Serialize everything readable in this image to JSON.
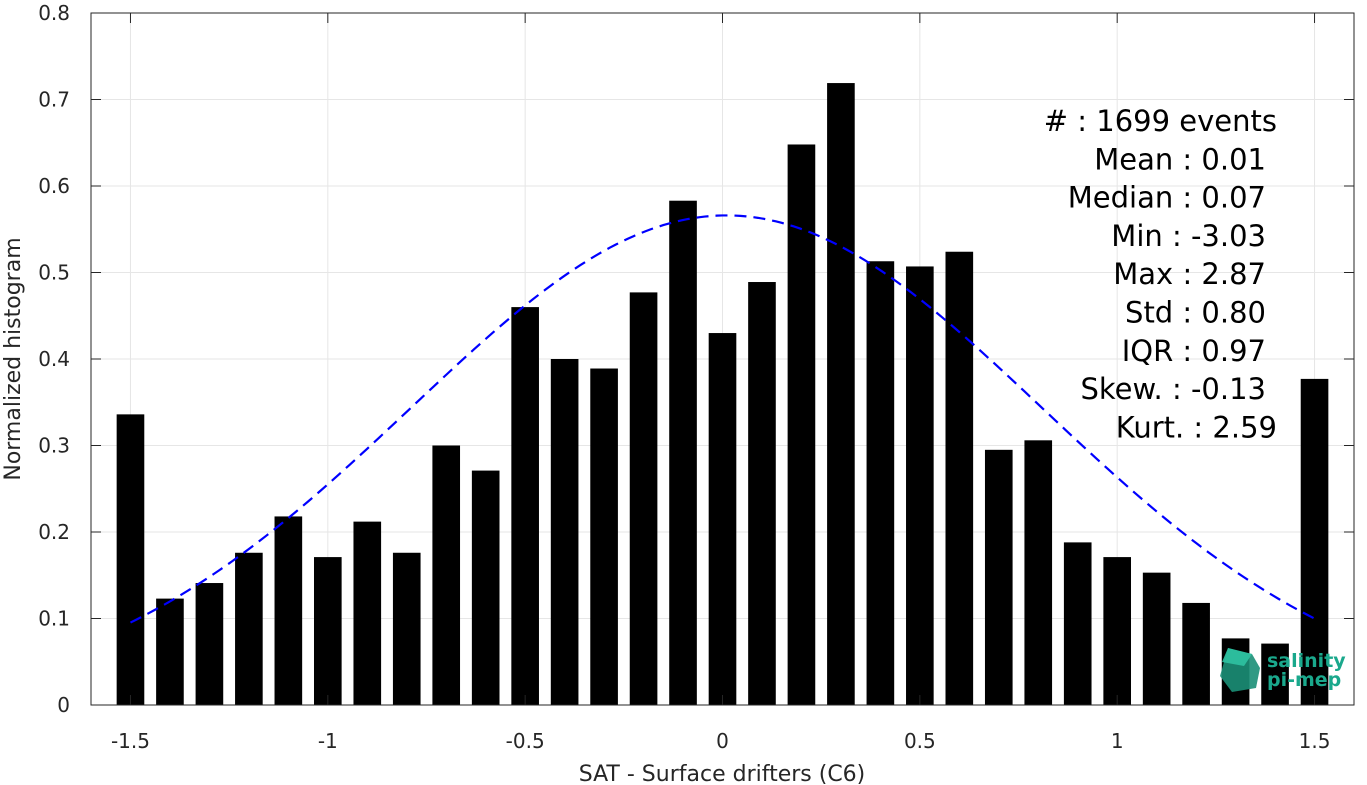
{
  "chart_data": {
    "type": "bar",
    "xlabel": "SAT - Surface drifters (C6)",
    "ylabel": "Normalized histogram",
    "xlim": [
      -1.6,
      1.6
    ],
    "ylim": [
      0,
      0.8
    ],
    "grid": true,
    "xticks": [
      -1.5,
      -1,
      -0.5,
      0,
      0.5,
      1,
      1.5
    ],
    "xtick_labels": [
      "-1.5",
      "-1",
      "-0.5",
      "0",
      "0.5",
      "1",
      "1.5"
    ],
    "yticks": [
      0,
      0.1,
      0.2,
      0.3,
      0.4,
      0.5,
      0.6,
      0.7,
      0.8
    ],
    "ytick_labels": [
      "0",
      "0.1",
      "0.2",
      "0.3",
      "0.4",
      "0.5",
      "0.6",
      "0.7",
      "0.8"
    ],
    "bin_width": 0.1,
    "bar_color": "#000000",
    "x": [
      -1.5,
      -1.4,
      -1.3,
      -1.2,
      -1.1,
      -1.0,
      -0.9,
      -0.8,
      -0.7,
      -0.6,
      -0.5,
      -0.4,
      -0.3,
      -0.2,
      -0.1,
      0.0,
      0.1,
      0.2,
      0.3,
      0.4,
      0.5,
      0.6,
      0.7,
      0.8,
      0.9,
      1.0,
      1.1,
      1.2,
      1.3,
      1.4,
      1.5
    ],
    "values": [
      0.336,
      0.123,
      0.141,
      0.176,
      0.218,
      0.171,
      0.212,
      0.176,
      0.3,
      0.271,
      0.46,
      0.4,
      0.389,
      0.477,
      0.583,
      0.43,
      0.489,
      0.648,
      0.719,
      0.513,
      0.507,
      0.524,
      0.295,
      0.306,
      0.188,
      0.171,
      0.153,
      0.118,
      0.077,
      0.071,
      0.377
    ],
    "fit": {
      "type": "normal",
      "style": "dashed",
      "color": "#0000ff",
      "mean": 0.01,
      "std": 0.8,
      "x_range": [
        -1.5,
        1.5
      ],
      "peak": 0.566
    },
    "stats": [
      {
        "label": "#  : 1699 events"
      },
      {
        "label": "Mean : 0.01"
      },
      {
        "label": "Median : 0.07"
      },
      {
        "label": "Min : -3.03"
      },
      {
        "label": "Max : 2.87"
      },
      {
        "label": "Std : 0.80"
      },
      {
        "label": "IQR : 0.97"
      },
      {
        "label": "Skew. : -0.13"
      },
      {
        "label": "Kurt. : 2.59"
      }
    ]
  },
  "logo": {
    "line1": "salinity",
    "line2": "pi-mep",
    "color": "#1aa88c"
  }
}
